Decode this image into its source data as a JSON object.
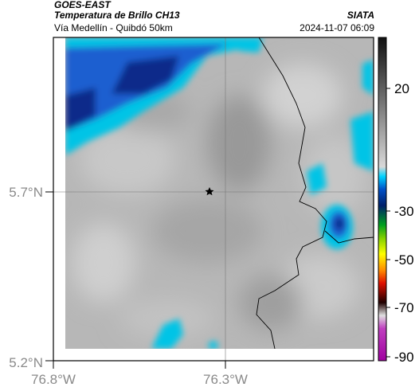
{
  "header": {
    "satellite": "GOES-EAST",
    "product": "Temperatura de Brillo CH13",
    "subtitle": "Vía Medellín - Quibdó 50km",
    "organization": "SIATA",
    "datetime": "2024-11-07 06:09"
  },
  "axes": {
    "lat_ticks": [
      "5.7°N",
      "5.2°N"
    ],
    "lon_ticks": [
      "76.8°W",
      "76.3°W"
    ]
  },
  "colorbar": {
    "ticks": [
      "20",
      "-30",
      "-50",
      "-70",
      "-90"
    ]
  },
  "map": {
    "marker": "star-marker",
    "colors": {
      "cloud_dark": "#0a2a8a",
      "cloud_mid": "#1a5fd0",
      "cloud_light": "#00c4e6",
      "land_gray": "#b4b4b4",
      "border": "#000000"
    }
  }
}
